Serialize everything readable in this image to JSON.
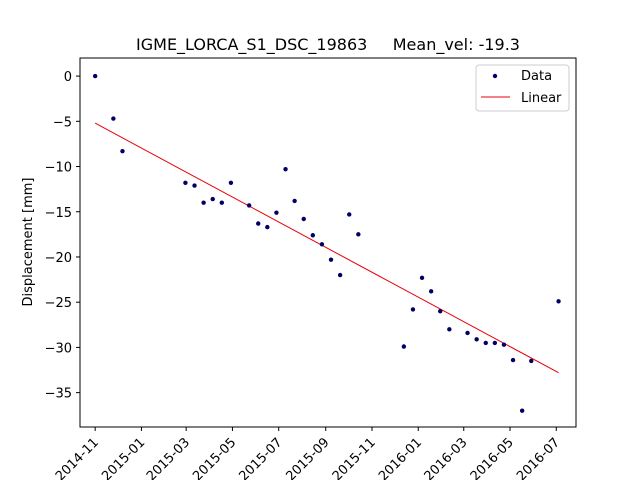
{
  "chart_data": {
    "type": "scatter",
    "title": "IGME_LORCA_S1_DSC_19863     Mean_vel: -19.3",
    "xlabel": "",
    "ylabel": "Displacement [mm]",
    "xlim": [
      "2014-10-12",
      "2016-07-27"
    ],
    "ylim": [
      -38.8,
      2.0
    ],
    "x_ticks": [
      "2014-11",
      "2015-01",
      "2015-03",
      "2015-05",
      "2015-07",
      "2015-09",
      "2015-11",
      "2016-01",
      "2016-03",
      "2016-05",
      "2016-07"
    ],
    "y_ticks": [
      0,
      -5,
      -10,
      -15,
      -20,
      -25,
      -30,
      -35
    ],
    "grid": false,
    "legend_position": "top-right",
    "colors": {
      "data": "#000066",
      "linear": "#e8000b"
    },
    "series": [
      {
        "name": "Data",
        "kind": "scatter",
        "points": [
          {
            "x": "2014-11-01",
            "y": 0.0
          },
          {
            "x": "2014-11-25",
            "y": -4.7
          },
          {
            "x": "2014-12-07",
            "y": -8.3
          },
          {
            "x": "2015-02-28",
            "y": -11.8
          },
          {
            "x": "2015-03-12",
            "y": -12.1
          },
          {
            "x": "2015-03-24",
            "y": -14.0
          },
          {
            "x": "2015-04-05",
            "y": -13.6
          },
          {
            "x": "2015-04-17",
            "y": -14.0
          },
          {
            "x": "2015-04-29",
            "y": -11.8
          },
          {
            "x": "2015-05-23",
            "y": -14.3
          },
          {
            "x": "2015-06-04",
            "y": -16.3
          },
          {
            "x": "2015-06-16",
            "y": -16.7
          },
          {
            "x": "2015-06-28",
            "y": -15.1
          },
          {
            "x": "2015-07-10",
            "y": -10.3
          },
          {
            "x": "2015-07-22",
            "y": -13.8
          },
          {
            "x": "2015-08-03",
            "y": -15.8
          },
          {
            "x": "2015-08-15",
            "y": -17.6
          },
          {
            "x": "2015-08-27",
            "y": -18.6
          },
          {
            "x": "2015-09-08",
            "y": -20.3
          },
          {
            "x": "2015-09-20",
            "y": -22.0
          },
          {
            "x": "2015-10-02",
            "y": -15.3
          },
          {
            "x": "2015-10-14",
            "y": -17.5
          },
          {
            "x": "2015-12-13",
            "y": -29.9
          },
          {
            "x": "2015-12-25",
            "y": -25.8
          },
          {
            "x": "2016-01-06",
            "y": -22.3
          },
          {
            "x": "2016-01-18",
            "y": -23.8
          },
          {
            "x": "2016-01-30",
            "y": -26.0
          },
          {
            "x": "2016-02-11",
            "y": -28.0
          },
          {
            "x": "2016-03-06",
            "y": -28.4
          },
          {
            "x": "2016-03-18",
            "y": -29.1
          },
          {
            "x": "2016-03-30",
            "y": -29.5
          },
          {
            "x": "2016-04-11",
            "y": -29.5
          },
          {
            "x": "2016-04-23",
            "y": -29.7
          },
          {
            "x": "2016-05-05",
            "y": -31.4
          },
          {
            "x": "2016-05-17",
            "y": -37.0
          },
          {
            "x": "2016-05-29",
            "y": -31.5
          },
          {
            "x": "2016-07-04",
            "y": -24.9
          }
        ]
      },
      {
        "name": "Linear",
        "kind": "line",
        "points": [
          {
            "x": "2014-11-01",
            "y": -5.2
          },
          {
            "x": "2016-07-04",
            "y": -32.8
          }
        ]
      }
    ]
  }
}
